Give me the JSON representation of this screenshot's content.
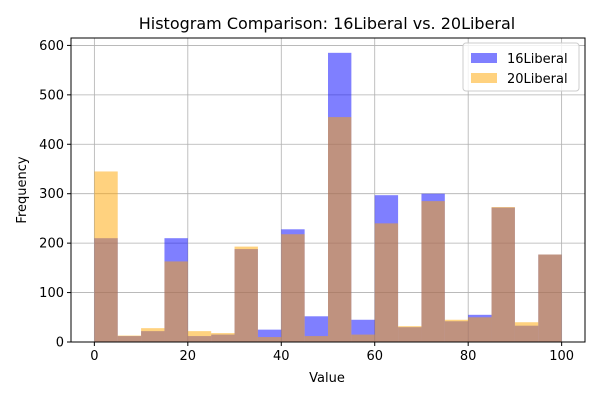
{
  "chart_data": {
    "type": "histogram",
    "title": "Histogram Comparison: 16Liberal vs. 20Liberal",
    "xlabel": "Value",
    "ylabel": "Frequency",
    "xlim": [
      -5,
      105
    ],
    "ylim": [
      0,
      615
    ],
    "xticks": [
      0,
      20,
      40,
      60,
      80,
      100
    ],
    "yticks": [
      0,
      100,
      200,
      300,
      400,
      500,
      600
    ],
    "grid": true,
    "legend_position": "top-right",
    "bin_edges": [
      0,
      5,
      10,
      15,
      20,
      25,
      30,
      35,
      40,
      45,
      50,
      55,
      60,
      65,
      70,
      75,
      80,
      85,
      90,
      95,
      100
    ],
    "series": [
      {
        "name": "16Liberal",
        "color": "#0000ff",
        "opacity": 0.5,
        "values": [
          210,
          12,
          22,
          210,
          12,
          15,
          188,
          25,
          228,
          52,
          585,
          45,
          297,
          30,
          300,
          42,
          55,
          272,
          33,
          177
        ]
      },
      {
        "name": "20Liberal",
        "color": "#ffa500",
        "opacity": 0.5,
        "values": [
          345,
          13,
          28,
          163,
          22,
          18,
          193,
          10,
          218,
          12,
          455,
          15,
          240,
          32,
          285,
          45,
          50,
          273,
          40,
          177
        ]
      }
    ]
  }
}
